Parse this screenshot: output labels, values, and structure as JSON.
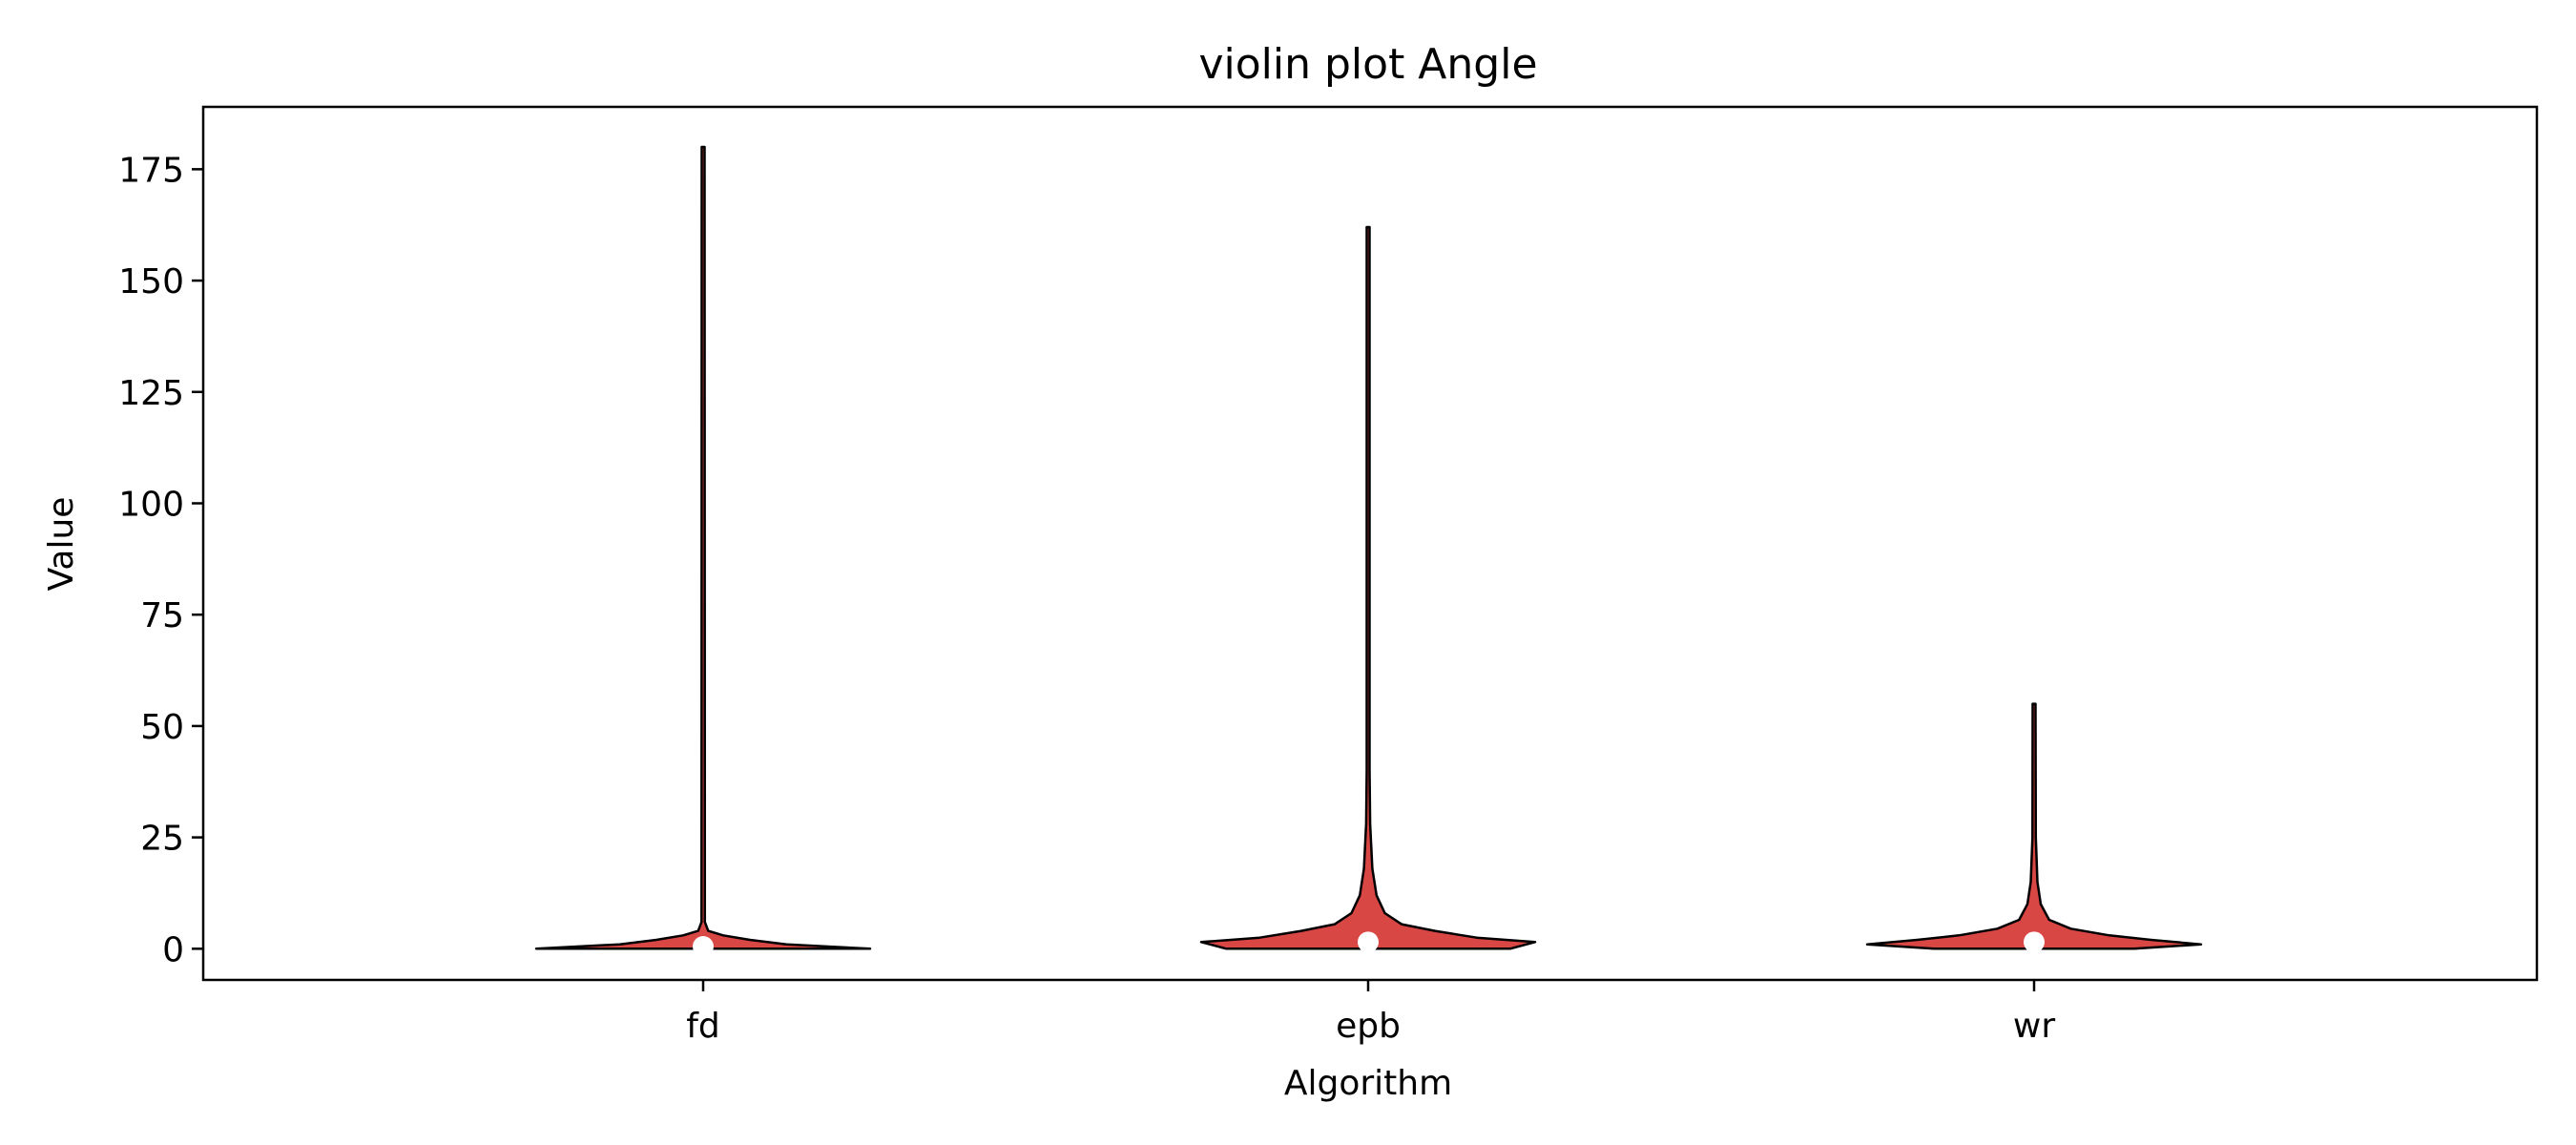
{
  "chart_data": {
    "type": "violin",
    "title": "violin plot Angle",
    "xlabel": "Algorithm",
    "ylabel": "Value",
    "categories": [
      "fd",
      "epb",
      "wr"
    ],
    "ylim": [
      -7,
      189
    ],
    "yticks": [
      0,
      25,
      50,
      75,
      100,
      125,
      150,
      175
    ],
    "fill_color": "#d94744",
    "edge_color": "#000000",
    "median_marker_color": "#ffffff",
    "violins": [
      {
        "name": "fd",
        "min": 0,
        "max": 180,
        "median": 0.5,
        "profile": [
          {
            "y": 0,
            "w": 1.0
          },
          {
            "y": 1,
            "w": 0.5
          },
          {
            "y": 2,
            "w": 0.28
          },
          {
            "y": 3,
            "w": 0.12
          },
          {
            "y": 4,
            "w": 0.03
          },
          {
            "y": 6,
            "w": 0.01
          },
          {
            "y": 180,
            "w": 0.006
          }
        ]
      },
      {
        "name": "epb",
        "min": 0,
        "max": 162,
        "median": 1.5,
        "profile": [
          {
            "y": 0,
            "w": 0.85
          },
          {
            "y": 1.5,
            "w": 1.0
          },
          {
            "y": 2.5,
            "w": 0.65
          },
          {
            "y": 4,
            "w": 0.4
          },
          {
            "y": 5.5,
            "w": 0.2
          },
          {
            "y": 8,
            "w": 0.1
          },
          {
            "y": 12,
            "w": 0.05
          },
          {
            "y": 18,
            "w": 0.025
          },
          {
            "y": 28,
            "w": 0.012
          },
          {
            "y": 40,
            "w": 0.007
          },
          {
            "y": 162,
            "w": 0.006
          }
        ]
      },
      {
        "name": "wr",
        "min": 0,
        "max": 55,
        "median": 1.5,
        "profile": [
          {
            "y": 0,
            "w": 0.6
          },
          {
            "y": 1,
            "w": 1.0
          },
          {
            "y": 2,
            "w": 0.7
          },
          {
            "y": 3,
            "w": 0.45
          },
          {
            "y": 4.5,
            "w": 0.22
          },
          {
            "y": 6.5,
            "w": 0.09
          },
          {
            "y": 10,
            "w": 0.04
          },
          {
            "y": 15,
            "w": 0.02
          },
          {
            "y": 25,
            "w": 0.01
          },
          {
            "y": 55,
            "w": 0.006
          }
        ]
      }
    ]
  }
}
